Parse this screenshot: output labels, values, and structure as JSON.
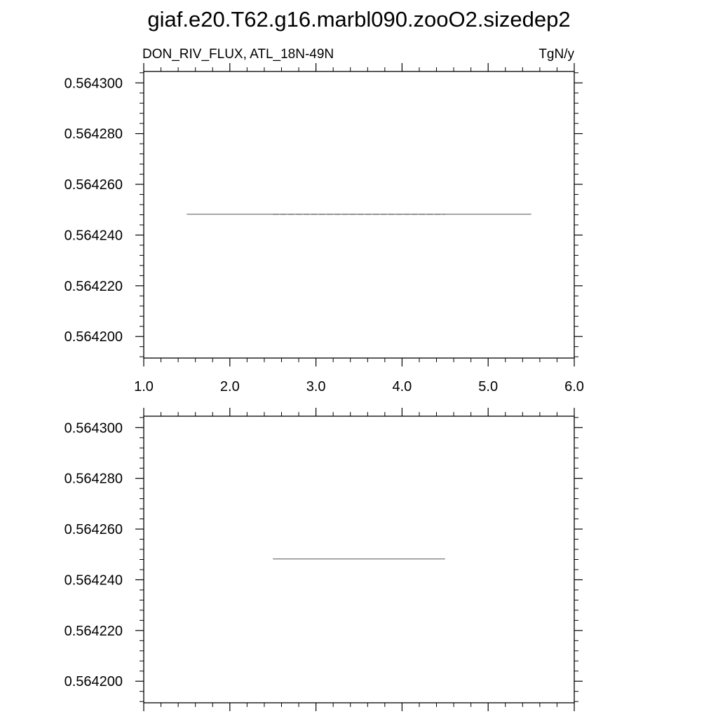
{
  "title": "giaf.e20.T62.g16.marbl090.zooO2.sizedep2",
  "chart_data": [
    {
      "type": "line",
      "left_label": "DON_RIV_FLUX, ATL_18N-49N",
      "right_label": "TgN/y",
      "xlim": [
        1.0,
        6.0
      ],
      "xticks": [
        1.0,
        2.0,
        3.0,
        4.0,
        5.0,
        6.0
      ],
      "xtick_labels": [
        "1.0",
        "2.0",
        "3.0",
        "4.0",
        "5.0",
        "6.0"
      ],
      "ylim": [
        0.5641915,
        0.5643045
      ],
      "yticks": [
        0.5642,
        0.56422,
        0.56424,
        0.56426,
        0.56428,
        0.5643
      ],
      "ytick_labels": [
        "0.564200",
        "0.564220",
        "0.564240",
        "0.564260",
        "0.564280",
        "0.564300"
      ],
      "grid": false,
      "series": [
        {
          "x": [
            1.5,
            5.5
          ],
          "y": [
            0.5642482,
            0.5642482
          ],
          "color": "#555555",
          "dash": "solid"
        },
        {
          "x": [
            2.5,
            4.5
          ],
          "y": [
            0.5642482,
            0.5642482
          ],
          "color": "#555555",
          "dash": "dashed"
        }
      ]
    },
    {
      "type": "line",
      "xlim": [
        1.0,
        6.0
      ],
      "xticks": [
        1.0,
        2.0,
        3.0,
        4.0,
        5.0,
        6.0
      ],
      "ylim": [
        0.5641915,
        0.5643045
      ],
      "yticks": [
        0.5642,
        0.56422,
        0.56424,
        0.56426,
        0.56428,
        0.5643
      ],
      "ytick_labels": [
        "0.564200",
        "0.564220",
        "0.564240",
        "0.564260",
        "0.564280",
        "0.564300"
      ],
      "grid": false,
      "series": [
        {
          "x": [
            2.5,
            4.5
          ],
          "y": [
            0.5642482,
            0.5642482
          ],
          "color": "#555555",
          "dash": "solid"
        }
      ]
    }
  ]
}
